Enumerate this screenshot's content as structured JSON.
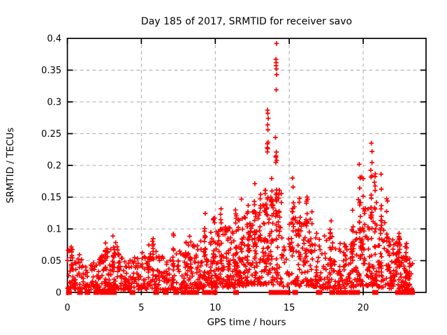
{
  "colors": {
    "marker": "#ff0000",
    "grid": "#a9a9a9",
    "axis": "#000000",
    "background": "#ffffff"
  },
  "chart_data": {
    "type": "scatter",
    "title": "Day 185 of 2017, SRMTID for receiver savo",
    "xlabel": "GPS time / hours",
    "ylabel": "SRMTID / TECUs",
    "marker": "plus-cross",
    "grid": "dashed",
    "legend": "none",
    "xlim": [
      0,
      24.25
    ],
    "ylim": [
      0,
      0.4
    ],
    "xticks": [
      [
        0,
        "0"
      ],
      [
        5,
        "5"
      ],
      [
        10,
        "10"
      ],
      [
        15,
        "15"
      ],
      [
        20,
        "20"
      ]
    ],
    "yticks": [
      [
        0,
        "0"
      ],
      [
        0.05,
        "0.05"
      ],
      [
        0.1,
        "0.1"
      ],
      [
        0.15,
        "0.15"
      ],
      [
        0.2,
        "0.2"
      ],
      [
        0.25,
        "0.25"
      ],
      [
        0.3,
        "0.3"
      ],
      [
        0.35,
        "0.35"
      ],
      [
        0.4,
        "0.4"
      ]
    ],
    "seed": 185,
    "bands": [
      [
        0.0,
        0.5,
        30,
        0.005,
        0.075
      ],
      [
        0.5,
        1.0,
        26,
        0.005,
        0.062
      ],
      [
        1.0,
        1.5,
        18,
        0.004,
        0.045
      ],
      [
        1.5,
        2.0,
        22,
        0.004,
        0.055
      ],
      [
        2.0,
        2.5,
        34,
        0.004,
        0.06
      ],
      [
        2.5,
        3.0,
        38,
        0.004,
        0.07
      ],
      [
        3.0,
        3.5,
        38,
        0.005,
        0.08
      ],
      [
        3.5,
        4.0,
        30,
        0.004,
        0.06
      ],
      [
        4.0,
        4.5,
        26,
        0.004,
        0.055
      ],
      [
        4.5,
        5.0,
        26,
        0.005,
        0.06
      ],
      [
        5.0,
        5.5,
        28,
        0.005,
        0.065
      ],
      [
        5.5,
        6.0,
        28,
        0.006,
        0.08
      ],
      [
        6.0,
        6.5,
        24,
        0.004,
        0.06
      ],
      [
        6.5,
        7.0,
        22,
        0.004,
        0.055
      ],
      [
        7.0,
        7.5,
        26,
        0.005,
        0.07
      ],
      [
        7.5,
        8.0,
        28,
        0.005,
        0.065
      ],
      [
        8.0,
        8.5,
        30,
        0.006,
        0.08
      ],
      [
        8.5,
        9.0,
        30,
        0.006,
        0.075
      ],
      [
        9.0,
        9.5,
        34,
        0.007,
        0.09
      ],
      [
        9.5,
        10.0,
        34,
        0.008,
        0.1
      ],
      [
        10.0,
        10.5,
        38,
        0.008,
        0.1
      ],
      [
        10.5,
        11.0,
        38,
        0.008,
        0.11
      ],
      [
        11.0,
        11.5,
        40,
        0.008,
        0.11
      ],
      [
        11.5,
        12.0,
        38,
        0.01,
        0.12
      ],
      [
        12.0,
        12.5,
        40,
        0.01,
        0.12
      ],
      [
        12.5,
        13.0,
        38,
        0.012,
        0.13
      ],
      [
        13.0,
        13.5,
        38,
        0.012,
        0.14
      ],
      [
        13.5,
        14.0,
        34,
        0.012,
        0.15
      ],
      [
        14.0,
        14.5,
        30,
        0.012,
        0.16
      ],
      [
        14.5,
        15.0,
        16,
        0.008,
        0.09
      ],
      [
        15.0,
        15.5,
        30,
        0.012,
        0.14
      ],
      [
        15.5,
        16.0,
        30,
        0.01,
        0.13
      ],
      [
        16.0,
        16.5,
        34,
        0.01,
        0.12
      ],
      [
        16.5,
        17.0,
        30,
        0.008,
        0.1
      ],
      [
        17.0,
        17.5,
        26,
        0.006,
        0.09
      ],
      [
        17.5,
        18.0,
        30,
        0.006,
        0.1
      ],
      [
        18.0,
        18.5,
        30,
        0.006,
        0.09
      ],
      [
        18.5,
        19.0,
        26,
        0.006,
        0.08
      ],
      [
        19.0,
        19.5,
        26,
        0.008,
        0.1
      ],
      [
        19.5,
        20.0,
        34,
        0.01,
        0.15
      ],
      [
        20.0,
        20.5,
        34,
        0.01,
        0.14
      ],
      [
        20.5,
        21.0,
        38,
        0.01,
        0.15
      ],
      [
        21.0,
        21.5,
        34,
        0.008,
        0.12
      ],
      [
        21.5,
        22.0,
        34,
        0.006,
        0.09
      ],
      [
        22.0,
        22.5,
        38,
        0.005,
        0.08
      ],
      [
        22.5,
        23.0,
        34,
        0.004,
        0.06
      ],
      [
        23.0,
        23.4,
        12,
        0.004,
        0.05
      ]
    ],
    "columns": [
      [
        0.3,
        6,
        0.03,
        0.074
      ],
      [
        2.6,
        7,
        0.02,
        0.088
      ],
      [
        3.1,
        7,
        0.02,
        0.092
      ],
      [
        5.8,
        8,
        0.04,
        0.117
      ],
      [
        7.2,
        5,
        0.03,
        0.095
      ],
      [
        8.3,
        6,
        0.03,
        0.096
      ],
      [
        9.3,
        9,
        0.03,
        0.13
      ],
      [
        9.9,
        8,
        0.04,
        0.12
      ],
      [
        10.4,
        10,
        0.04,
        0.145
      ],
      [
        10.9,
        8,
        0.03,
        0.12
      ],
      [
        11.4,
        9,
        0.04,
        0.13
      ],
      [
        11.8,
        10,
        0.04,
        0.155
      ],
      [
        12.2,
        9,
        0.04,
        0.14
      ],
      [
        12.65,
        11,
        0.05,
        0.172
      ],
      [
        13.05,
        10,
        0.04,
        0.155
      ],
      [
        13.35,
        9,
        0.05,
        0.165
      ],
      [
        13.55,
        12,
        0.05,
        0.24
      ],
      [
        13.8,
        10,
        0.04,
        0.19
      ],
      [
        14.12,
        14,
        0.05,
        0.215
      ],
      [
        14.3,
        8,
        0.04,
        0.165
      ],
      [
        15.25,
        11,
        0.05,
        0.185
      ],
      [
        15.7,
        9,
        0.04,
        0.155
      ],
      [
        16.2,
        10,
        0.04,
        0.158
      ],
      [
        16.5,
        7,
        0.03,
        0.13
      ],
      [
        17.8,
        6,
        0.02,
        0.115
      ],
      [
        19.3,
        7,
        0.03,
        0.13
      ],
      [
        19.78,
        13,
        0.05,
        0.225
      ],
      [
        19.95,
        9,
        0.05,
        0.2
      ],
      [
        20.55,
        11,
        0.04,
        0.235
      ],
      [
        20.8,
        11,
        0.04,
        0.19
      ],
      [
        21.2,
        9,
        0.03,
        0.195
      ],
      [
        21.6,
        7,
        0.02,
        0.15
      ],
      [
        22.45,
        12,
        0.015,
        0.095
      ],
      [
        22.9,
        14,
        0.008,
        0.08
      ],
      [
        23.1,
        9,
        0.006,
        0.058
      ]
    ],
    "outliers": [
      [
        14.14,
        0.392
      ],
      [
        14.1,
        0.367
      ],
      [
        14.12,
        0.362
      ],
      [
        14.11,
        0.357
      ],
      [
        14.13,
        0.352
      ],
      [
        14.15,
        0.343
      ],
      [
        14.12,
        0.319
      ],
      [
        13.53,
        0.287
      ],
      [
        13.55,
        0.282
      ],
      [
        13.58,
        0.274
      ],
      [
        13.54,
        0.264
      ],
      [
        13.56,
        0.256
      ],
      [
        13.52,
        0.234
      ],
      [
        14.07,
        0.244
      ],
      [
        14.13,
        0.221
      ],
      [
        14.1,
        0.215
      ],
      [
        14.16,
        0.208
      ],
      [
        20.55,
        0.235
      ],
      [
        20.6,
        0.222
      ]
    ],
    "baseline_segments": [
      [
        0.05,
        0.15
      ],
      [
        0.8,
        0.9
      ],
      [
        1.3,
        1.4
      ],
      [
        1.9,
        2.0
      ],
      [
        2.3,
        2.6
      ],
      [
        2.65,
        2.95
      ],
      [
        3.1,
        3.2
      ],
      [
        4.35,
        4.45
      ],
      [
        5.95,
        6.05
      ],
      [
        6.6,
        6.7
      ],
      [
        7.3,
        7.4
      ],
      [
        7.8,
        7.9
      ],
      [
        8.2,
        8.5
      ],
      [
        8.65,
        8.75
      ],
      [
        9.25,
        9.35
      ],
      [
        9.5,
        9.6
      ],
      [
        9.9,
        10.0
      ],
      [
        11.35,
        11.45
      ],
      [
        13.75,
        13.85
      ],
      [
        13.95,
        14.05
      ],
      [
        14.1,
        14.2
      ],
      [
        14.28,
        14.38
      ],
      [
        14.5,
        14.6
      ],
      [
        14.68,
        14.78
      ],
      [
        14.85,
        14.95
      ],
      [
        15.35,
        15.45
      ],
      [
        16.95,
        17.1
      ],
      [
        17.85,
        17.98
      ],
      [
        18.3,
        18.4
      ],
      [
        18.52,
        18.6
      ],
      [
        18.75,
        18.85
      ],
      [
        19.15,
        19.65
      ],
      [
        20.75,
        20.88
      ],
      [
        22.3,
        22.75
      ],
      [
        22.8,
        23.35
      ]
    ]
  }
}
